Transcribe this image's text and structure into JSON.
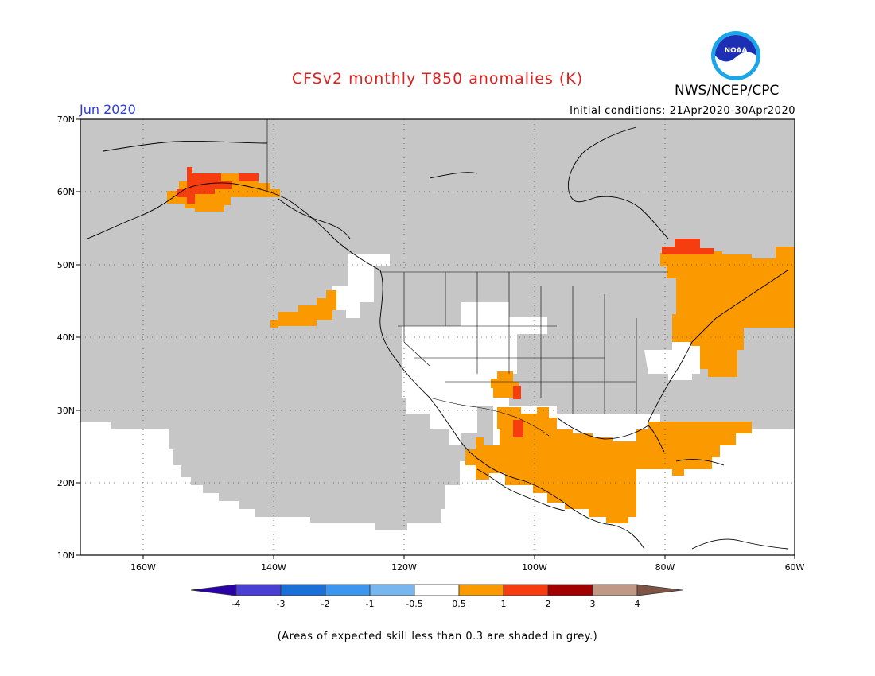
{
  "header": {
    "title": "CFSv2 monthly T850 anomalies (K)",
    "month": "Jun 2020",
    "initial_conditions": "Initial conditions: 21Apr2020-30Apr2020",
    "agency": "NWS/NCEP/CPC",
    "logo_text": "NOAA"
  },
  "map": {
    "lat_labels": [
      "70N",
      "60N",
      "50N",
      "40N",
      "30N",
      "20N",
      "10N"
    ],
    "lon_labels": [
      "160W",
      "140W",
      "120W",
      "100W",
      "80W",
      "60W"
    ],
    "colors": {
      "skill_grey": "#c6c6c6",
      "neutral": "#ffffff",
      "warm_0_5_1": "#fa9a00",
      "warm_1_2": "#f53d0f",
      "warm_2_3": "#a00000",
      "warm_3_4": "#c09886",
      "warm_gt_4": "#7e5544",
      "cool_lt_neg4": "#2a00a8",
      "cool_neg4_neg3": "#4a3fd3",
      "cool_neg3_neg2": "#1a6fd9",
      "cool_neg2_neg1": "#3c96f0",
      "cool_neg1_neg05": "#78b6f0"
    }
  },
  "colorbar": {
    "tick_labels": [
      "-4",
      "-3",
      "-2",
      "-1",
      "-0.5",
      "0.5",
      "1",
      "2",
      "3",
      "4"
    ]
  },
  "footnote": "(Areas of expected skill less than 0.3 are shaded in grey.)"
}
